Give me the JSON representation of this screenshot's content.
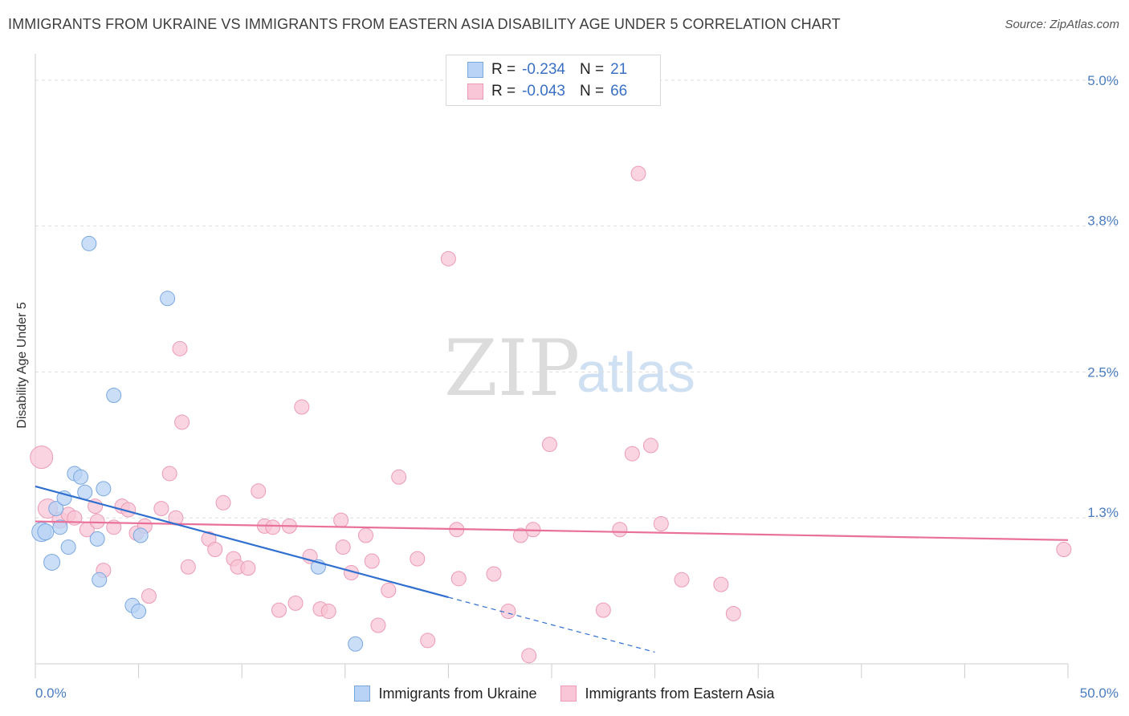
{
  "header": {
    "title": "IMMIGRANTS FROM UKRAINE VS IMMIGRANTS FROM EASTERN ASIA DISABILITY AGE UNDER 5 CORRELATION CHART",
    "source": "Source: ZipAtlas.com"
  },
  "watermark": {
    "zip": "ZIP",
    "atlas": "atlas"
  },
  "legend_top": [
    {
      "r_label": "R =",
      "r_value": "-0.234",
      "n_label": "N =",
      "n_value": "21"
    },
    {
      "r_label": "R =",
      "r_value": "-0.043",
      "n_label": "N =",
      "n_value": "66"
    }
  ],
  "legend_bottom": [
    {
      "label": "Immigrants from Ukraine"
    },
    {
      "label": "Immigrants from Eastern Asia"
    }
  ],
  "colors": {
    "blue_fill": "#b8d3f5",
    "blue_stroke": "#7aa7e0",
    "blue_line": "#2f6fcf",
    "pink_fill": "#f8c6d6",
    "pink_stroke": "#eb9bb6",
    "pink_line": "#e8709a",
    "grid": "#dddddd",
    "tick_label": "#4a7cc0"
  },
  "chart_data": {
    "type": "scatter",
    "title": "IMMIGRANTS FROM UKRAINE VS IMMIGRANTS FROM EASTERN ASIA DISABILITY AGE UNDER 5 CORRELATION CHART",
    "xlabel": "",
    "ylabel": "Disability Age Under 5",
    "xlim": [
      0,
      50
    ],
    "ylim": [
      0,
      5.15
    ],
    "x_tick_labels": [
      {
        "value": 0,
        "label": "0.0%"
      },
      {
        "value": 50,
        "label": "50.0%"
      }
    ],
    "y_tick_labels": [
      {
        "value": 1.3,
        "label": "1.3%"
      },
      {
        "value": 2.5,
        "label": "2.5%"
      },
      {
        "value": 3.8,
        "label": "3.8%"
      },
      {
        "value": 5.0,
        "label": "5.0%"
      }
    ],
    "y_gridlines": [
      1.25,
      2.5,
      3.75,
      5.0
    ],
    "x_minor_ticks": [
      0,
      5,
      10,
      15,
      20,
      25,
      30,
      35,
      40,
      45,
      50
    ],
    "legend_position": "top-center",
    "series": [
      {
        "name": "Immigrants from Ukraine",
        "color": "blue",
        "points": [
          [
            0.3,
            1.13,
            12
          ],
          [
            0.5,
            1.13,
            10
          ],
          [
            0.8,
            0.87,
            10
          ],
          [
            1.0,
            1.33,
            9
          ],
          [
            1.2,
            1.17,
            9
          ],
          [
            1.4,
            1.42,
            9
          ],
          [
            1.6,
            1.0,
            9
          ],
          [
            1.9,
            1.63,
            9
          ],
          [
            2.2,
            1.6,
            9
          ],
          [
            2.4,
            1.47,
            9
          ],
          [
            2.6,
            3.6,
            9
          ],
          [
            3.0,
            1.07,
            9
          ],
          [
            3.1,
            0.72,
            9
          ],
          [
            3.3,
            1.5,
            9
          ],
          [
            3.8,
            2.3,
            9
          ],
          [
            4.7,
            0.5,
            9
          ],
          [
            5.0,
            0.45,
            9
          ],
          [
            5.1,
            1.1,
            9
          ],
          [
            6.4,
            3.13,
            9
          ],
          [
            13.7,
            0.83,
            9
          ],
          [
            15.5,
            0.17,
            9
          ]
        ],
        "trend": {
          "x0": 0,
          "y0": 1.52,
          "x1": 20,
          "y1": 0.57,
          "dashed_to_x": 30,
          "dashed_to_y": 0.1
        }
      },
      {
        "name": "Immigrants from Eastern Asia",
        "color": "pink",
        "points": [
          [
            0.3,
            1.77,
            14
          ],
          [
            0.6,
            1.33,
            12
          ],
          [
            1.2,
            1.23,
            10
          ],
          [
            1.6,
            1.28,
            9
          ],
          [
            1.9,
            1.25,
            9
          ],
          [
            2.5,
            1.15,
            9
          ],
          [
            2.9,
            1.35,
            9
          ],
          [
            3.0,
            1.22,
            9
          ],
          [
            3.3,
            0.8,
            9
          ],
          [
            3.8,
            1.17,
            9
          ],
          [
            4.2,
            1.35,
            9
          ],
          [
            4.5,
            1.32,
            9
          ],
          [
            4.9,
            1.12,
            9
          ],
          [
            5.3,
            1.18,
            9
          ],
          [
            5.5,
            0.58,
            9
          ],
          [
            6.1,
            1.33,
            9
          ],
          [
            6.5,
            1.63,
            9
          ],
          [
            6.8,
            1.25,
            9
          ],
          [
            7.0,
            2.7,
            9
          ],
          [
            7.1,
            2.07,
            9
          ],
          [
            7.4,
            0.83,
            9
          ],
          [
            8.4,
            1.07,
            9
          ],
          [
            8.7,
            0.98,
            9
          ],
          [
            9.1,
            1.38,
            9
          ],
          [
            9.6,
            0.9,
            9
          ],
          [
            9.8,
            0.83,
            9
          ],
          [
            10.3,
            0.82,
            9
          ],
          [
            10.8,
            1.48,
            9
          ],
          [
            11.1,
            1.18,
            9
          ],
          [
            11.5,
            1.17,
            9
          ],
          [
            11.8,
            0.46,
            9
          ],
          [
            12.3,
            1.18,
            9
          ],
          [
            12.6,
            0.52,
            9
          ],
          [
            12.9,
            2.2,
            9
          ],
          [
            13.3,
            0.92,
            9
          ],
          [
            13.8,
            0.47,
            9
          ],
          [
            14.2,
            0.45,
            9
          ],
          [
            14.8,
            1.23,
            9
          ],
          [
            14.9,
            1.0,
            9
          ],
          [
            15.3,
            0.78,
            9
          ],
          [
            16.0,
            1.1,
            9
          ],
          [
            16.3,
            0.88,
            9
          ],
          [
            16.6,
            0.33,
            9
          ],
          [
            17.1,
            0.63,
            9
          ],
          [
            17.6,
            1.6,
            9
          ],
          [
            18.5,
            0.9,
            9
          ],
          [
            19.0,
            0.2,
            9
          ],
          [
            20.0,
            3.47,
            9
          ],
          [
            20.4,
            1.15,
            9
          ],
          [
            20.5,
            0.73,
            9
          ],
          [
            22.2,
            0.77,
            9
          ],
          [
            22.9,
            0.45,
            9
          ],
          [
            23.5,
            1.1,
            9
          ],
          [
            23.9,
            0.07,
            9
          ],
          [
            24.1,
            1.15,
            9
          ],
          [
            24.9,
            1.88,
            9
          ],
          [
            27.5,
            0.46,
            9
          ],
          [
            28.3,
            1.15,
            9
          ],
          [
            28.9,
            1.8,
            9
          ],
          [
            29.2,
            4.2,
            9
          ],
          [
            29.8,
            1.87,
            9
          ],
          [
            30.3,
            1.2,
            9
          ],
          [
            31.3,
            0.72,
            9
          ],
          [
            33.2,
            0.68,
            9
          ],
          [
            33.8,
            0.43,
            9
          ],
          [
            49.8,
            0.98,
            9
          ]
        ],
        "trend": {
          "x0": 0,
          "y0": 1.22,
          "x1": 50,
          "y1": 1.06
        }
      }
    ]
  }
}
